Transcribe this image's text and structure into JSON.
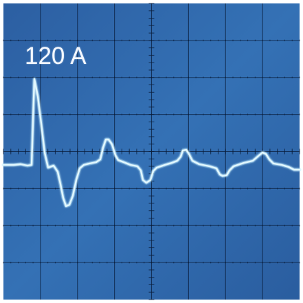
{
  "scope": {
    "label": "120 A",
    "colors": {
      "screen": "#2f64a8",
      "screen_light": "#3a74b6",
      "grid": "#0a1e3c",
      "trace": "#d9f6ff",
      "trace_glow": "#9fe3ff",
      "frame": "#ffffff"
    },
    "graticule": {
      "major_divisions_x": 8,
      "major_divisions_y": 8,
      "minor_ticks_per_division": 5,
      "center_axes": true
    }
  }
}
